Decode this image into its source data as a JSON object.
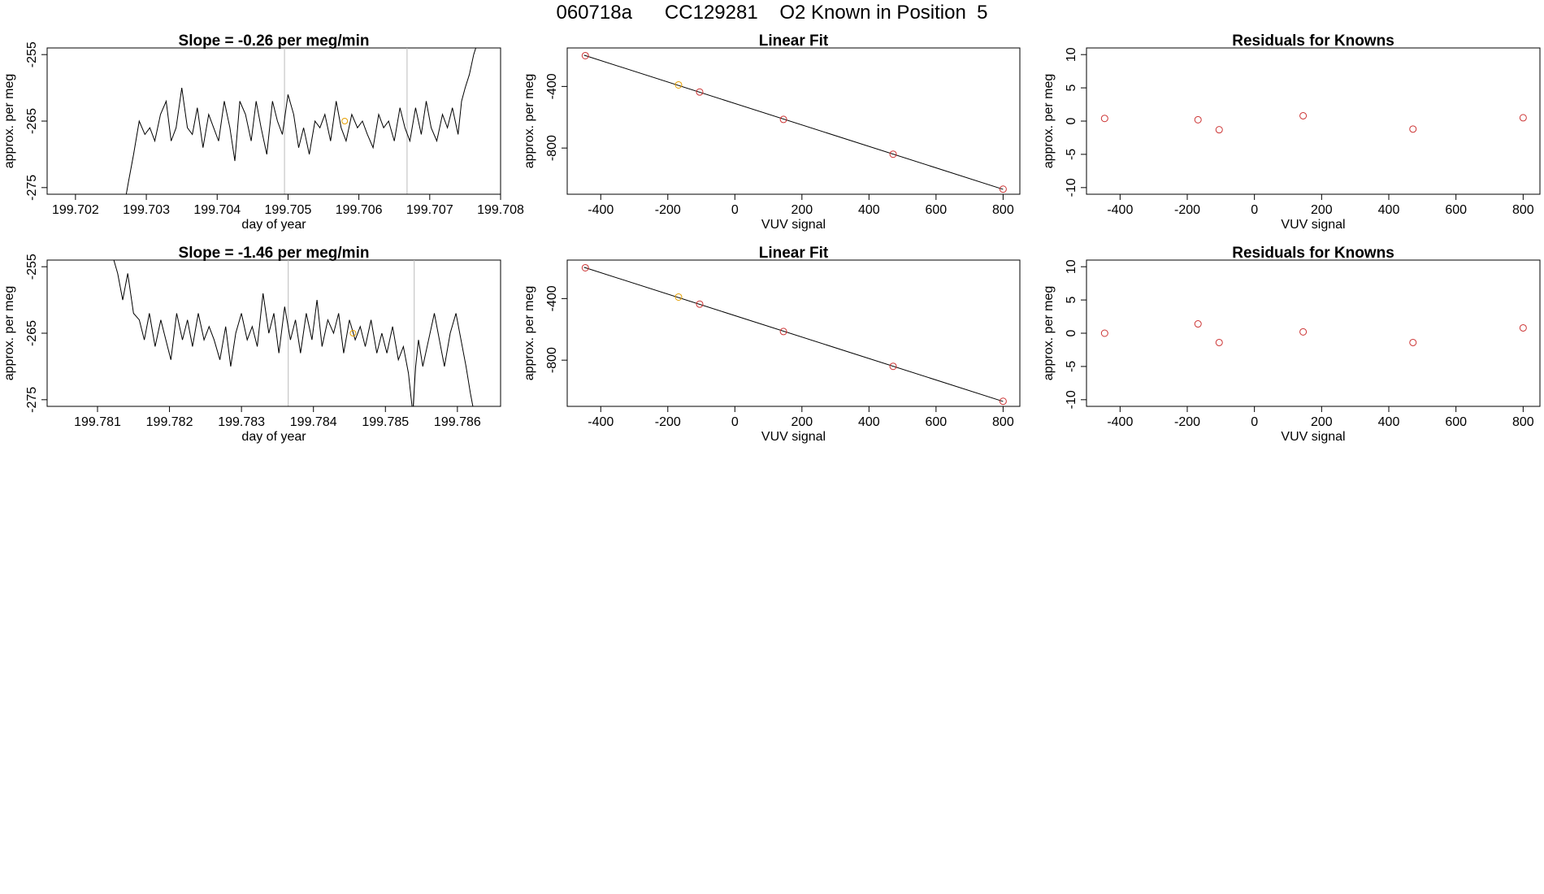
{
  "page": {
    "title": "060718a      CC129281    O2 Known in Position  5"
  },
  "chart_data": [
    {
      "type": "line",
      "title": "Slope =  -0.26  per meg/min",
      "xlabel": "day of year",
      "ylabel": "approx. per meg",
      "xlim": [
        199.7016,
        199.708
      ],
      "ylim": [
        -276,
        -254
      ],
      "xticks": [
        199.702,
        199.703,
        199.704,
        199.705,
        199.706,
        199.707,
        199.708
      ],
      "xtick_labels": [
        "199.702",
        "199.703",
        "199.704",
        "199.705",
        "199.706",
        "199.707",
        "199.708"
      ],
      "yticks": [
        -255,
        -265,
        -275
      ],
      "ytick_labels": [
        "-255",
        "-265",
        "-275"
      ],
      "vlines": [
        199.70495,
        199.70668
      ],
      "marker": {
        "x": 199.7058,
        "y": -265.0,
        "color": "#e69f00"
      },
      "series": [
        {
          "x": [
            199.7027,
            199.70275,
            199.70282,
            199.7029,
            199.70298,
            199.70305,
            199.70312,
            199.7032,
            199.70328,
            199.70335,
            199.70342,
            199.7035,
            199.70358,
            199.70365,
            199.70372,
            199.7038,
            199.70388,
            199.70395,
            199.70402,
            199.7041,
            199.70418,
            199.70425,
            199.70432,
            199.7044,
            199.70448,
            199.70455,
            199.70462,
            199.7047,
            199.70478,
            199.70485,
            199.70492,
            199.705,
            199.70508,
            199.70515,
            199.70522,
            199.7053,
            199.70538,
            199.70545,
            199.70552,
            199.7056,
            199.70568,
            199.70575,
            199.70582,
            199.7059,
            199.70598,
            199.70605,
            199.70612,
            199.7062,
            199.70628,
            199.70635,
            199.70642,
            199.7065,
            199.70658,
            199.70665,
            199.70672,
            199.7068,
            199.70688,
            199.70695,
            199.70702,
            199.7071,
            199.70718,
            199.70725,
            199.70732,
            199.7074,
            199.70745,
            199.7075,
            199.70756,
            199.70762,
            199.70768
          ],
          "y": [
            -277,
            -274,
            -270,
            -265,
            -267,
            -266,
            -268,
            -264,
            -262,
            -268,
            -266,
            -260,
            -266,
            -267,
            -263,
            -269,
            -264,
            -266,
            -268,
            -262,
            -266,
            -271,
            -262,
            -264,
            -268,
            -262,
            -266,
            -270,
            -262,
            -265,
            -267,
            -261,
            -264,
            -269,
            -266,
            -270,
            -265,
            -266,
            -264,
            -268,
            -262,
            -266,
            -268,
            -264,
            -266,
            -265,
            -267,
            -269,
            -264,
            -266,
            -265,
            -268,
            -263,
            -266,
            -268,
            -263,
            -267,
            -262,
            -266,
            -268,
            -264,
            -266,
            -263,
            -267,
            -262,
            -260,
            -258,
            -255,
            -253
          ]
        }
      ]
    },
    {
      "type": "scatter",
      "title": "Linear Fit",
      "xlabel": "VUV signal",
      "ylabel": "approx. per meg",
      "xlim": [
        -500,
        850
      ],
      "ylim": [
        -1100,
        -150
      ],
      "xticks": [
        -400,
        -200,
        0,
        200,
        400,
        600,
        800
      ],
      "xtick_labels": [
        "-400",
        "-200",
        "0",
        "200",
        "400",
        "600",
        "800"
      ],
      "yticks": [
        -400,
        -800
      ],
      "ytick_labels": [
        "-400",
        "-800"
      ],
      "fit_line": {
        "x": [
          -450,
          800
        ],
        "y": [
          -197,
          -1068
        ]
      },
      "points": [
        {
          "x": -446,
          "y": -200,
          "color": "#cc3333"
        },
        {
          "x": -168,
          "y": -390,
          "color": "#e69f00"
        },
        {
          "x": -105,
          "y": -436,
          "color": "#cc3333"
        },
        {
          "x": 145,
          "y": -614,
          "color": "#cc3333"
        },
        {
          "x": 472,
          "y": -840,
          "color": "#cc3333"
        },
        {
          "x": 800,
          "y": -1067,
          "color": "#cc3333"
        }
      ]
    },
    {
      "type": "scatter",
      "title": "Residuals for Knowns",
      "xlabel": "VUV signal",
      "ylabel": "approx. per meg",
      "xlim": [
        -500,
        850
      ],
      "ylim": [
        -11,
        11
      ],
      "xticks": [
        -400,
        -200,
        0,
        200,
        400,
        600,
        800
      ],
      "xtick_labels": [
        "-400",
        "-200",
        "0",
        "200",
        "400",
        "600",
        "800"
      ],
      "yticks": [
        10,
        5,
        0,
        -5,
        -10
      ],
      "ytick_labels": [
        "10",
        "5",
        "0",
        "-5",
        "-10"
      ],
      "points": [
        {
          "x": -446,
          "y": 0.4,
          "color": "#cc3333"
        },
        {
          "x": -168,
          "y": 0.2,
          "color": "#cc3333"
        },
        {
          "x": -105,
          "y": -1.3,
          "color": "#cc3333"
        },
        {
          "x": 145,
          "y": 0.8,
          "color": "#cc3333"
        },
        {
          "x": 472,
          "y": -1.2,
          "color": "#cc3333"
        },
        {
          "x": 800,
          "y": 0.5,
          "color": "#cc3333"
        }
      ]
    },
    {
      "type": "line",
      "title": "Slope =  -1.46  per meg/min",
      "xlabel": "day of year",
      "ylabel": "approx. per meg",
      "xlim": [
        199.7803,
        199.7866
      ],
      "ylim": [
        -276,
        -254
      ],
      "xticks": [
        199.781,
        199.782,
        199.783,
        199.784,
        199.785,
        199.786
      ],
      "xtick_labels": [
        "199.781",
        "199.782",
        "199.783",
        "199.784",
        "199.785",
        "199.786"
      ],
      "yticks": [
        -255,
        -265,
        -275
      ],
      "ytick_labels": [
        "-255",
        "-265",
        "-275"
      ],
      "vlines": [
        199.78365,
        199.7854
      ],
      "marker": {
        "x": 199.78455,
        "y": -265.0,
        "color": "#e69f00"
      },
      "series": [
        {
          "x": [
            199.7812,
            199.78128,
            199.78135,
            199.78142,
            199.7815,
            199.78158,
            199.78165,
            199.78172,
            199.7818,
            199.78188,
            199.78195,
            199.78202,
            199.7821,
            199.78218,
            199.78225,
            199.78232,
            199.7824,
            199.78248,
            199.78255,
            199.78262,
            199.7827,
            199.78278,
            199.78285,
            199.78292,
            199.783,
            199.78308,
            199.78315,
            199.78322,
            199.7833,
            199.78338,
            199.78345,
            199.78352,
            199.7836,
            199.78368,
            199.78375,
            199.78382,
            199.7839,
            199.78398,
            199.78405,
            199.78412,
            199.7842,
            199.78428,
            199.78435,
            199.78442,
            199.7845,
            199.78458,
            199.78465,
            199.78472,
            199.7848,
            199.78488,
            199.78495,
            199.78502,
            199.7851,
            199.78518,
            199.78525,
            199.78532,
            199.78538,
            199.78542,
            199.78546,
            199.78552,
            199.7856,
            199.78568,
            199.78575,
            199.78582,
            199.7859,
            199.78598,
            199.78605,
            199.78612,
            199.78618,
            199.78625
          ],
          "y": [
            -253,
            -256,
            -260,
            -256,
            -262,
            -263,
            -266,
            -262,
            -267,
            -263,
            -266,
            -269,
            -262,
            -266,
            -263,
            -267,
            -262,
            -266,
            -264,
            -266,
            -269,
            -264,
            -270,
            -265,
            -262,
            -266,
            -264,
            -267,
            -259,
            -265,
            -262,
            -268,
            -261,
            -266,
            -263,
            -268,
            -262,
            -266,
            -260,
            -267,
            -263,
            -265,
            -262,
            -268,
            -263,
            -266,
            -264,
            -267,
            -263,
            -268,
            -265,
            -268,
            -264,
            -269,
            -267,
            -271,
            -277,
            -270,
            -266,
            -270,
            -266,
            -262,
            -266,
            -270,
            -265,
            -262,
            -266,
            -270,
            -274,
            -278
          ]
        }
      ]
    },
    {
      "type": "scatter",
      "title": "Linear Fit",
      "xlabel": "VUV signal",
      "ylabel": "approx. per meg",
      "xlim": [
        -500,
        850
      ],
      "ylim": [
        -1100,
        -150
      ],
      "xticks": [
        -400,
        -200,
        0,
        200,
        400,
        600,
        800
      ],
      "xtick_labels": [
        "-400",
        "-200",
        "0",
        "200",
        "400",
        "600",
        "800"
      ],
      "yticks": [
        -400,
        -800
      ],
      "ytick_labels": [
        "-400",
        "-800"
      ],
      "fit_line": {
        "x": [
          -450,
          800
        ],
        "y": [
          -197,
          -1068
        ]
      },
      "points": [
        {
          "x": -446,
          "y": -200,
          "color": "#cc3333"
        },
        {
          "x": -168,
          "y": -390,
          "color": "#e69f00"
        },
        {
          "x": -105,
          "y": -436,
          "color": "#cc3333"
        },
        {
          "x": 145,
          "y": -614,
          "color": "#cc3333"
        },
        {
          "x": 472,
          "y": -840,
          "color": "#cc3333"
        },
        {
          "x": 800,
          "y": -1067,
          "color": "#cc3333"
        }
      ]
    },
    {
      "type": "scatter",
      "title": "Residuals for Knowns",
      "xlabel": "VUV signal",
      "ylabel": "approx. per meg",
      "xlim": [
        -500,
        850
      ],
      "ylim": [
        -11,
        11
      ],
      "xticks": [
        -400,
        -200,
        0,
        200,
        400,
        600,
        800
      ],
      "xtick_labels": [
        "-400",
        "-200",
        "0",
        "200",
        "400",
        "600",
        "800"
      ],
      "yticks": [
        10,
        5,
        0,
        -5,
        -10
      ],
      "ytick_labels": [
        "10",
        "5",
        "0",
        "-5",
        "-10"
      ],
      "points": [
        {
          "x": -446,
          "y": 0.0,
          "color": "#cc3333"
        },
        {
          "x": -168,
          "y": 1.4,
          "color": "#cc3333"
        },
        {
          "x": -105,
          "y": -1.4,
          "color": "#cc3333"
        },
        {
          "x": 145,
          "y": 0.2,
          "color": "#cc3333"
        },
        {
          "x": 472,
          "y": -1.4,
          "color": "#cc3333"
        },
        {
          "x": 800,
          "y": 0.8,
          "color": "#cc3333"
        }
      ]
    }
  ]
}
